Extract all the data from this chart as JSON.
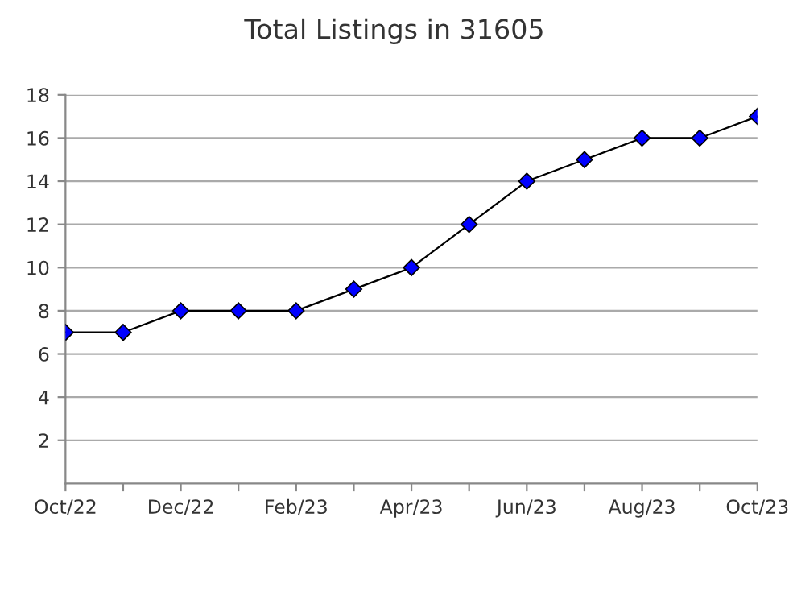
{
  "chart_data": {
    "type": "line",
    "title": "Total Listings in 31605",
    "categories": [
      "Oct/22",
      null,
      "Dec/22",
      null,
      "Feb/23",
      null,
      "Apr/23",
      null,
      "Jun/23",
      null,
      "Aug/23",
      null,
      "Oct/23"
    ],
    "series": [
      {
        "color": "#0000ff",
        "values": [
          7,
          7,
          8,
          8,
          8,
          9,
          10,
          12,
          14,
          15,
          16,
          16,
          17
        ]
      }
    ],
    "ylim": [
      0,
      18
    ],
    "yticks": [
      2,
      4,
      6,
      8,
      10,
      12,
      14,
      16,
      18
    ],
    "grid": "y",
    "marker": "diamond",
    "line_style": "solid"
  }
}
